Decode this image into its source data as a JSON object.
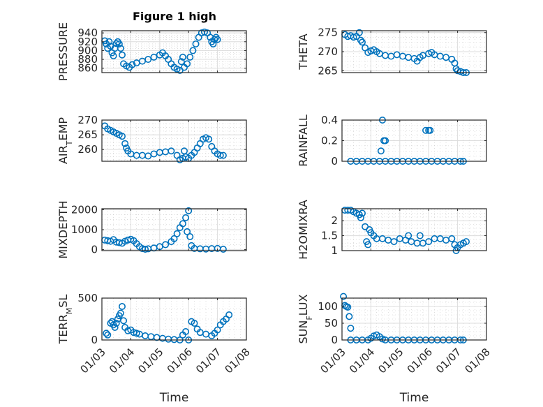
{
  "figure": {
    "title": "Figure 1 high",
    "background": "#ffffff",
    "marker_color": "#0072BD",
    "axis_color": "#262626"
  },
  "chart_data": [
    {
      "type": "scatter",
      "title": "Figure 1 high",
      "ylabel": "PRESSURE",
      "xlabel": "",
      "ylim": [
        850,
        945
      ],
      "yticks": [
        860,
        880,
        900,
        920,
        940
      ],
      "xticks": [
        "01/03",
        "01/04",
        "01/05",
        "01/06",
        "01/07",
        "01/08"
      ],
      "xlim": [
        0,
        5
      ],
      "grid": true,
      "minor_grid": true,
      "points": [
        [
          0.1,
          922
        ],
        [
          0.15,
          915
        ],
        [
          0.2,
          905
        ],
        [
          0.25,
          920
        ],
        [
          0.3,
          910
        ],
        [
          0.35,
          895
        ],
        [
          0.4,
          888
        ],
        [
          0.45,
          905
        ],
        [
          0.5,
          916
        ],
        [
          0.55,
          920
        ],
        [
          0.6,
          915
        ],
        [
          0.65,
          905
        ],
        [
          0.7,
          890
        ],
        [
          0.75,
          870
        ],
        [
          0.85,
          865
        ],
        [
          0.95,
          862
        ],
        [
          1.05,
          868
        ],
        [
          1.2,
          872
        ],
        [
          1.4,
          876
        ],
        [
          1.6,
          880
        ],
        [
          1.8,
          885
        ],
        [
          2.0,
          890
        ],
        [
          2.1,
          895
        ],
        [
          2.2,
          888
        ],
        [
          2.3,
          880
        ],
        [
          2.4,
          870
        ],
        [
          2.5,
          862
        ],
        [
          2.6,
          858
        ],
        [
          2.7,
          855
        ],
        [
          2.75,
          875
        ],
        [
          2.8,
          885
        ],
        [
          2.85,
          862
        ],
        [
          2.95,
          870
        ],
        [
          3.05,
          885
        ],
        [
          3.15,
          900
        ],
        [
          3.25,
          915
        ],
        [
          3.35,
          930
        ],
        [
          3.45,
          940
        ],
        [
          3.55,
          942
        ],
        [
          3.65,
          940
        ],
        [
          3.75,
          930
        ],
        [
          3.8,
          920
        ],
        [
          3.85,
          915
        ],
        [
          3.9,
          925
        ],
        [
          3.95,
          930
        ],
        [
          4.0,
          925
        ]
      ]
    },
    {
      "type": "scatter",
      "ylabel": "THETA",
      "ylim": [
        264.5,
        275.5
      ],
      "yticks": [
        265,
        270,
        275
      ],
      "xticks": [
        "01/03",
        "01/04",
        "01/05",
        "01/06",
        "01/07",
        "01/08"
      ],
      "xlim": [
        0,
        5
      ],
      "grid": true,
      "minor_grid": true,
      "points": [
        [
          0.1,
          274.5
        ],
        [
          0.2,
          274
        ],
        [
          0.3,
          274.2
        ],
        [
          0.4,
          273.8
        ],
        [
          0.5,
          274
        ],
        [
          0.6,
          275
        ],
        [
          0.65,
          273
        ],
        [
          0.7,
          272.5
        ],
        [
          0.8,
          271
        ],
        [
          0.9,
          269.8
        ],
        [
          1.0,
          270.2
        ],
        [
          1.1,
          270.5
        ],
        [
          1.2,
          270
        ],
        [
          1.3,
          269.5
        ],
        [
          1.5,
          269
        ],
        [
          1.7,
          268.8
        ],
        [
          1.9,
          269.2
        ],
        [
          2.1,
          268.8
        ],
        [
          2.3,
          268.5
        ],
        [
          2.5,
          268.2
        ],
        [
          2.6,
          267.5
        ],
        [
          2.7,
          268.5
        ],
        [
          2.8,
          269
        ],
        [
          3.0,
          269.5
        ],
        [
          3.1,
          269.8
        ],
        [
          3.2,
          269.2
        ],
        [
          3.4,
          268.8
        ],
        [
          3.6,
          268.5
        ],
        [
          3.8,
          268.0
        ],
        [
          3.9,
          267
        ],
        [
          3.95,
          265.5
        ],
        [
          4.0,
          265
        ],
        [
          4.1,
          264.8
        ],
        [
          4.2,
          264.5
        ],
        [
          4.3,
          264.5
        ]
      ]
    },
    {
      "type": "scatter",
      "ylabel": "AIR_TEMP",
      "ylim": [
        256,
        270
      ],
      "yticks": [
        260,
        265,
        270
      ],
      "xticks": [
        "01/03",
        "01/04",
        "01/05",
        "01/06",
        "01/07",
        "01/08"
      ],
      "xlim": [
        0,
        5
      ],
      "grid": true,
      "minor_grid": true,
      "points": [
        [
          0.1,
          268
        ],
        [
          0.2,
          267
        ],
        [
          0.3,
          266.5
        ],
        [
          0.4,
          266
        ],
        [
          0.5,
          265.5
        ],
        [
          0.6,
          265
        ],
        [
          0.7,
          264.5
        ],
        [
          0.8,
          262
        ],
        [
          0.85,
          260.5
        ],
        [
          0.9,
          259.5
        ],
        [
          1.0,
          258.5
        ],
        [
          1.2,
          258
        ],
        [
          1.4,
          258
        ],
        [
          1.6,
          257.8
        ],
        [
          1.8,
          258.5
        ],
        [
          2.0,
          259
        ],
        [
          2.2,
          259.2
        ],
        [
          2.4,
          259.5
        ],
        [
          2.6,
          258
        ],
        [
          2.7,
          256.5
        ],
        [
          2.8,
          257
        ],
        [
          2.85,
          259.5
        ],
        [
          2.9,
          257.5
        ],
        [
          3.0,
          257
        ],
        [
          3.1,
          258
        ],
        [
          3.2,
          259
        ],
        [
          3.3,
          260.5
        ],
        [
          3.4,
          262
        ],
        [
          3.5,
          263.5
        ],
        [
          3.6,
          264
        ],
        [
          3.7,
          263.5
        ],
        [
          3.8,
          261
        ],
        [
          3.9,
          259.5
        ],
        [
          4.0,
          258.5
        ],
        [
          4.1,
          258
        ],
        [
          4.2,
          258
        ]
      ]
    },
    {
      "type": "scatter",
      "ylabel": "RAINFALL",
      "ylim": [
        0,
        0.4
      ],
      "yticks": [
        0,
        0.2,
        0.4
      ],
      "xticks": [
        "01/03",
        "01/04",
        "01/05",
        "01/06",
        "01/07",
        "01/08"
      ],
      "xlim": [
        0,
        5
      ],
      "grid": true,
      "minor_grid": true,
      "points": [
        [
          0.3,
          0
        ],
        [
          0.5,
          0
        ],
        [
          0.7,
          0
        ],
        [
          0.9,
          0
        ],
        [
          1.1,
          0
        ],
        [
          1.3,
          0
        ],
        [
          1.5,
          0
        ],
        [
          1.7,
          0
        ],
        [
          1.9,
          0
        ],
        [
          2.1,
          0
        ],
        [
          2.3,
          0
        ],
        [
          2.5,
          0
        ],
        [
          2.7,
          0
        ],
        [
          2.9,
          0
        ],
        [
          3.1,
          0
        ],
        [
          3.3,
          0
        ],
        [
          3.5,
          0
        ],
        [
          3.7,
          0
        ],
        [
          3.9,
          0
        ],
        [
          4.1,
          0
        ],
        [
          4.2,
          0
        ],
        [
          1.35,
          0.1
        ],
        [
          1.45,
          0.2
        ],
        [
          1.5,
          0.2
        ],
        [
          1.4,
          0.4
        ],
        [
          2.9,
          0.3
        ],
        [
          3.0,
          0.3
        ],
        [
          3.05,
          0.3
        ]
      ]
    },
    {
      "type": "scatter",
      "ylabel": "MIXDEPTH",
      "ylim": [
        -50,
        2050
      ],
      "yticks": [
        0,
        1000,
        2000
      ],
      "xticks": [
        "01/03",
        "01/04",
        "01/05",
        "01/06",
        "01/07",
        "01/08"
      ],
      "xlim": [
        0,
        5
      ],
      "grid": true,
      "minor_grid": true,
      "points": [
        [
          0.1,
          480
        ],
        [
          0.2,
          450
        ],
        [
          0.3,
          420
        ],
        [
          0.4,
          500
        ],
        [
          0.5,
          380
        ],
        [
          0.6,
          350
        ],
        [
          0.7,
          320
        ],
        [
          0.8,
          420
        ],
        [
          0.9,
          480
        ],
        [
          1.0,
          520
        ],
        [
          1.1,
          450
        ],
        [
          1.2,
          300
        ],
        [
          1.3,
          150
        ],
        [
          1.4,
          50
        ],
        [
          1.5,
          20
        ],
        [
          1.6,
          40
        ],
        [
          1.8,
          80
        ],
        [
          2.0,
          150
        ],
        [
          2.2,
          250
        ],
        [
          2.4,
          400
        ],
        [
          2.5,
          550
        ],
        [
          2.6,
          800
        ],
        [
          2.7,
          1100
        ],
        [
          2.8,
          1300
        ],
        [
          2.9,
          1600
        ],
        [
          3.0,
          1950
        ],
        [
          2.95,
          900
        ],
        [
          3.05,
          650
        ],
        [
          3.1,
          200
        ],
        [
          3.2,
          60
        ],
        [
          3.4,
          40
        ],
        [
          3.6,
          30
        ],
        [
          3.8,
          50
        ],
        [
          4.0,
          60
        ],
        [
          4.2,
          20
        ]
      ]
    },
    {
      "type": "scatter",
      "ylabel": "H2OMIXRA",
      "ylim": [
        1,
        2.4
      ],
      "yticks": [
        1,
        1.5,
        2
      ],
      "xticks": [
        "01/03",
        "01/04",
        "01/05",
        "01/06",
        "01/07",
        "01/08"
      ],
      "xlim": [
        0,
        5
      ],
      "grid": true,
      "minor_grid": true,
      "points": [
        [
          0.1,
          2.35
        ],
        [
          0.2,
          2.35
        ],
        [
          0.3,
          2.35
        ],
        [
          0.4,
          2.3
        ],
        [
          0.5,
          2.25
        ],
        [
          0.6,
          2.2
        ],
        [
          0.65,
          2.1
        ],
        [
          0.7,
          2.25
        ],
        [
          0.8,
          1.8
        ],
        [
          0.85,
          1.3
        ],
        [
          0.9,
          1.2
        ],
        [
          0.95,
          1.7
        ],
        [
          1.0,
          1.6
        ],
        [
          1.1,
          1.5
        ],
        [
          1.2,
          1.4
        ],
        [
          1.4,
          1.4
        ],
        [
          1.6,
          1.35
        ],
        [
          1.8,
          1.3
        ],
        [
          2.0,
          1.4
        ],
        [
          2.2,
          1.35
        ],
        [
          2.3,
          1.5
        ],
        [
          2.4,
          1.3
        ],
        [
          2.6,
          1.25
        ],
        [
          2.7,
          1.5
        ],
        [
          2.8,
          1.25
        ],
        [
          3.0,
          1.3
        ],
        [
          3.2,
          1.4
        ],
        [
          3.4,
          1.4
        ],
        [
          3.6,
          1.35
        ],
        [
          3.8,
          1.4
        ],
        [
          3.9,
          1.2
        ],
        [
          3.95,
          1.0
        ],
        [
          4.0,
          1.1
        ],
        [
          4.1,
          1.2
        ],
        [
          4.2,
          1.25
        ],
        [
          4.3,
          1.3
        ]
      ]
    },
    {
      "type": "scatter",
      "ylabel": "TERR_MSL",
      "ylim": [
        0,
        500
      ],
      "yticks": [
        0,
        500
      ],
      "xticks": [
        "01/03",
        "01/04",
        "01/05",
        "01/06",
        "01/07",
        "01/08"
      ],
      "xlim": [
        0,
        5
      ],
      "xlabel": "Time",
      "grid": true,
      "minor_grid": true,
      "points": [
        [
          0.15,
          80
        ],
        [
          0.2,
          60
        ],
        [
          0.3,
          200
        ],
        [
          0.35,
          220
        ],
        [
          0.4,
          180
        ],
        [
          0.45,
          150
        ],
        [
          0.5,
          200
        ],
        [
          0.55,
          250
        ],
        [
          0.6,
          290
        ],
        [
          0.65,
          320
        ],
        [
          0.7,
          400
        ],
        [
          0.75,
          230
        ],
        [
          0.8,
          150
        ],
        [
          0.9,
          110
        ],
        [
          1.0,
          120
        ],
        [
          1.1,
          90
        ],
        [
          1.2,
          80
        ],
        [
          1.3,
          70
        ],
        [
          1.5,
          50
        ],
        [
          1.7,
          40
        ],
        [
          1.9,
          30
        ],
        [
          2.1,
          20
        ],
        [
          2.3,
          10
        ],
        [
          2.5,
          5
        ],
        [
          2.7,
          0
        ],
        [
          2.8,
          60
        ],
        [
          2.9,
          100
        ],
        [
          3.0,
          0
        ],
        [
          3.1,
          220
        ],
        [
          3.2,
          200
        ],
        [
          3.3,
          130
        ],
        [
          3.4,
          90
        ],
        [
          3.6,
          70
        ],
        [
          3.8,
          50
        ],
        [
          3.9,
          80
        ],
        [
          4.0,
          120
        ],
        [
          4.1,
          180
        ],
        [
          4.2,
          220
        ],
        [
          4.3,
          250
        ],
        [
          4.4,
          300
        ]
      ]
    },
    {
      "type": "scatter",
      "ylabel": "SUN_FLUX",
      "ylim": [
        0,
        125
      ],
      "yticks": [
        0,
        50,
        100
      ],
      "xticks": [
        "01/03",
        "01/04",
        "01/05",
        "01/06",
        "01/07",
        "01/08"
      ],
      "xlim": [
        0,
        5
      ],
      "xlabel": "Time",
      "grid": true,
      "minor_grid": true,
      "points": [
        [
          0.05,
          130
        ],
        [
          0.1,
          103
        ],
        [
          0.15,
          100
        ],
        [
          0.2,
          98
        ],
        [
          0.25,
          70
        ],
        [
          0.3,
          35
        ],
        [
          0.3,
          0
        ],
        [
          0.5,
          0
        ],
        [
          0.7,
          0
        ],
        [
          0.9,
          0
        ],
        [
          1.0,
          5
        ],
        [
          1.1,
          12
        ],
        [
          1.2,
          15
        ],
        [
          1.3,
          10
        ],
        [
          1.4,
          3
        ],
        [
          1.5,
          0
        ],
        [
          1.7,
          0
        ],
        [
          1.9,
          0
        ],
        [
          2.1,
          0
        ],
        [
          2.3,
          0
        ],
        [
          2.5,
          0
        ],
        [
          2.7,
          0
        ],
        [
          2.9,
          0
        ],
        [
          3.1,
          0
        ],
        [
          3.3,
          0
        ],
        [
          3.5,
          0
        ],
        [
          3.7,
          0
        ],
        [
          3.9,
          0
        ],
        [
          4.1,
          0
        ],
        [
          4.2,
          0
        ]
      ]
    }
  ]
}
